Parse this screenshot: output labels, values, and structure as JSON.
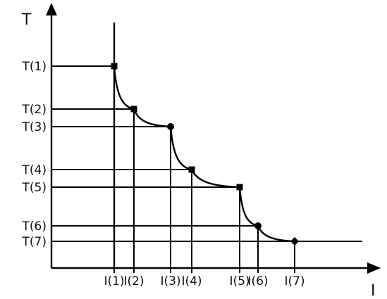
{
  "diagram": {
    "y_axis_label": "T",
    "x_axis_label": "I",
    "colors": {
      "line": "#000000",
      "text": "#111111",
      "background": "#ffffff"
    },
    "points": [
      {
        "t_label": "T(1)",
        "i_label": "I(1)",
        "marker": "square"
      },
      {
        "t_label": "T(2)",
        "i_label": "I(2)",
        "marker": "square"
      },
      {
        "t_label": "T(3)",
        "i_label": "I(3)",
        "marker": "circle"
      },
      {
        "t_label": "T(4)",
        "i_label": "I(4)",
        "marker": "square"
      },
      {
        "t_label": "T(5)",
        "i_label": "I(5)",
        "marker": "square"
      },
      {
        "t_label": "T(6)",
        "i_label": "I(6)",
        "marker": "circle"
      },
      {
        "t_label": "T(7)",
        "i_label": "I(7)",
        "marker": "diamond"
      }
    ]
  }
}
